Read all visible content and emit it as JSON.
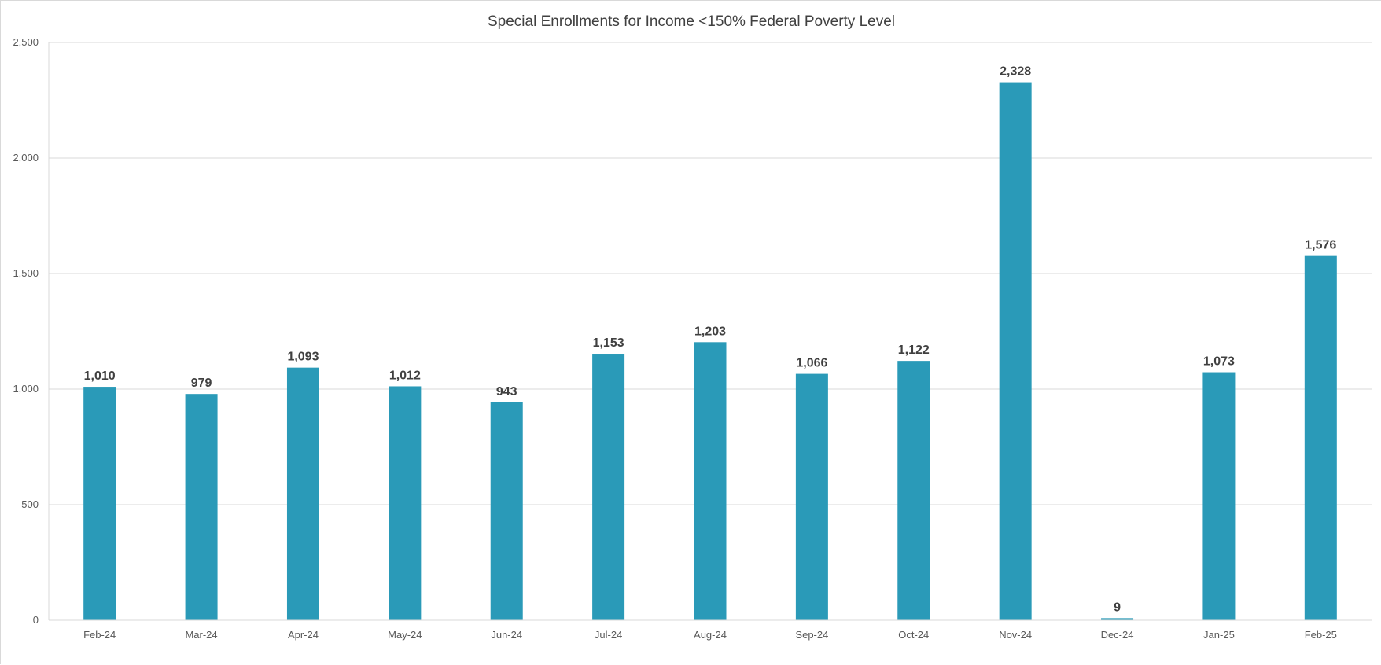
{
  "chart_data": {
    "type": "bar",
    "title": "Special Enrollments for Income <150% Federal Poverty Level",
    "xlabel": "",
    "ylabel": "",
    "categories": [
      "Feb-24",
      "Mar-24",
      "Apr-24",
      "May-24",
      "Jun-24",
      "Jul-24",
      "Aug-24",
      "Sep-24",
      "Oct-24",
      "Nov-24",
      "Dec-24",
      "Jan-25",
      "Feb-25"
    ],
    "values": [
      1010,
      979,
      1093,
      1012,
      943,
      1153,
      1203,
      1066,
      1122,
      2328,
      9,
      1073,
      1576
    ],
    "data_labels": [
      "1,010",
      "979",
      "1,093",
      "1,012",
      "943",
      "1,153",
      "1,203",
      "1,066",
      "1,122",
      "2,328",
      "9",
      "1,073",
      "1,576"
    ],
    "y_ticks": [
      0,
      500,
      1000,
      1500,
      2000,
      2500
    ],
    "y_tick_labels": [
      "0",
      "500",
      "1,000",
      "1,500",
      "2,000",
      "2,500"
    ],
    "ylim": [
      0,
      2500
    ],
    "grid": true,
    "legend": "none",
    "bar_color": "#2a9ab8",
    "grid_color": "#d9d9d9"
  }
}
